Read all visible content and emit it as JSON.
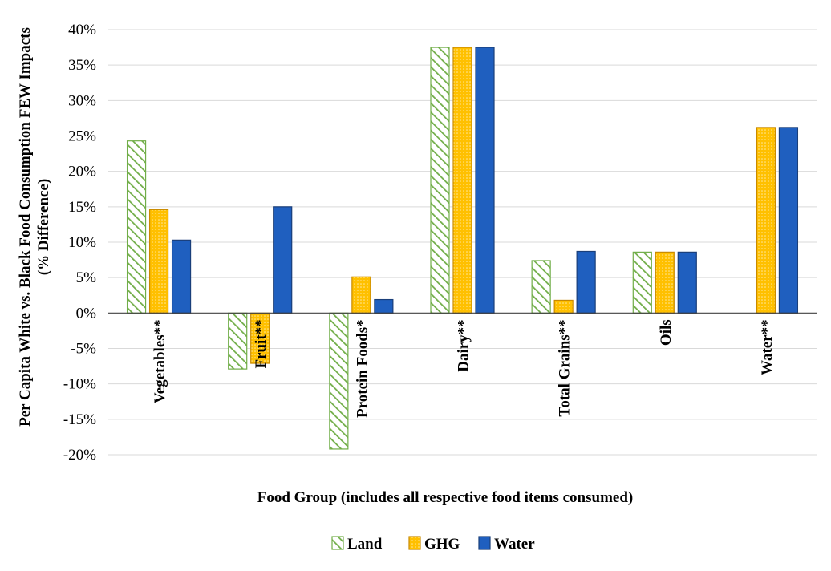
{
  "chart_data": {
    "type": "bar",
    "categories": [
      "Vegetables**",
      "Fruit**",
      "Protein Foods*",
      "Dairy**",
      "Total Grains**",
      "Oils",
      "Water**"
    ],
    "series": [
      {
        "name": "Land",
        "values": [
          24.3,
          -7.9,
          -19.2,
          37.5,
          7.4,
          8.6,
          null
        ],
        "color": "#70ad47",
        "pattern": "diagonal-hatch"
      },
      {
        "name": "GHG",
        "values": [
          14.6,
          -7.1,
          5.1,
          37.5,
          1.8,
          8.6,
          26.2
        ],
        "color": "#ffc000",
        "pattern": "dotted"
      },
      {
        "name": "Water",
        "values": [
          10.3,
          15.0,
          1.9,
          37.5,
          8.7,
          8.6,
          26.2
        ],
        "color": "#1f5fbf",
        "pattern": "solid"
      }
    ],
    "ylim": [
      -20,
      40
    ],
    "yticks": [
      40,
      35,
      30,
      25,
      20,
      15,
      10,
      5,
      0,
      -5,
      -10,
      -15,
      -20
    ],
    "ytick_labels": [
      "40%",
      "35%",
      "30%",
      "25%",
      "20%",
      "15%",
      "10%",
      "5%",
      "0%",
      "-5%",
      "-10%",
      "-15%",
      "-20%"
    ],
    "ylabel_line1": "Per Capita White vs. Black Food Consumption FEW Impacts",
    "ylabel_line2": "(% Difference)",
    "xlabel": "Food Group (includes all respective food items consumed)",
    "grid": true,
    "legend_position": "bottom-center"
  }
}
